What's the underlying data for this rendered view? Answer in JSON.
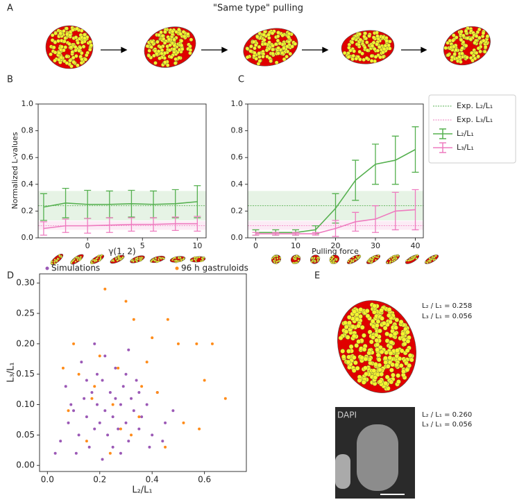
{
  "figure_title": "\"Same type\" pulling",
  "panel_labels": [
    "A",
    "B",
    "C",
    "D",
    "E"
  ],
  "chart_data": [
    {
      "type": "line",
      "y_label": "Normalized L-values",
      "x_label": "γ(1, 2)",
      "x": [
        -4,
        -2,
        0,
        2,
        4,
        6,
        8,
        10
      ],
      "xlim": [
        -4.5,
        10.8
      ],
      "xticks": [
        0,
        5,
        10
      ],
      "ylim": [
        0,
        1
      ],
      "yticks": [
        {
          "value": 0,
          "label": "0.0"
        },
        0.2,
        0.4,
        0.6,
        0.8,
        {
          "value": 1,
          "label": "1.0"
        }
      ],
      "reference_lines": [
        {
          "color": "#55b04f",
          "value": 0.24,
          "band": [
            0.13,
            0.35
          ]
        },
        {
          "color": "#ee7bbf",
          "value": 0.09,
          "band": [
            0.06,
            0.125
          ]
        }
      ],
      "series": [
        {
          "color": "#55b04f",
          "values": [
            0.23,
            0.26,
            0.25,
            0.25,
            0.255,
            0.25,
            0.255,
            0.27
          ],
          "errors": [
            0.1,
            0.11,
            0.105,
            0.1,
            0.1,
            0.1,
            0.105,
            0.12
          ]
        },
        {
          "color": "#ee7bbf",
          "values": [
            0.07,
            0.09,
            0.09,
            0.095,
            0.1,
            0.1,
            0.105,
            0.105
          ],
          "errors": [
            0.05,
            0.05,
            0.055,
            0.055,
            0.05,
            0.05,
            0.05,
            0.055
          ]
        }
      ]
    },
    {
      "type": "line",
      "x_label": "Pulling force",
      "x": [
        0,
        5,
        10,
        15,
        20,
        25,
        30,
        35,
        40
      ],
      "xlim": [
        -2,
        42
      ],
      "xticks": [
        0,
        10,
        20,
        30,
        40
      ],
      "ylim": [
        0,
        1
      ],
      "yticks": [
        {
          "value": 0,
          "label": "0.0"
        },
        0.2,
        0.4,
        0.6,
        0.8,
        {
          "value": 1,
          "label": "1.0"
        }
      ],
      "legend": "outside right",
      "reference_lines": [
        {
          "name": "Exp. L₂/L₁",
          "color": "#55b04f",
          "value": 0.24,
          "band": [
            0.13,
            0.35
          ]
        },
        {
          "name": "Exp. L₃/L₁",
          "color": "#ee7bbf",
          "value": 0.09,
          "band": [
            0.06,
            0.125
          ]
        }
      ],
      "series": [
        {
          "name": "L₂/L₁",
          "color": "#55b04f",
          "values": [
            0.04,
            0.04,
            0.04,
            0.06,
            0.22,
            0.43,
            0.55,
            0.58,
            0.66
          ],
          "errors": [
            0.02,
            0.02,
            0.02,
            0.03,
            0.11,
            0.15,
            0.15,
            0.18,
            0.17
          ]
        },
        {
          "name": "L₃/L₁",
          "color": "#ee7bbf",
          "values": [
            0.03,
            0.03,
            0.03,
            0.03,
            0.07,
            0.12,
            0.14,
            0.2,
            0.21
          ],
          "errors": [
            0.01,
            0.01,
            0.01,
            0.01,
            0.06,
            0.07,
            0.1,
            0.14,
            0.15
          ]
        }
      ]
    },
    {
      "type": "scatter",
      "x_label": "L₂/L₁",
      "y_label": "L₃/L₁",
      "legend": "top",
      "xlim": [
        -0.03,
        0.76
      ],
      "xticks": [
        {
          "value": 0,
          "label": "0.0"
        },
        0.2,
        0.4,
        0.6
      ],
      "ylim": [
        -0.01,
        0.315
      ],
      "yticks": [
        {
          "value": 0,
          "label": "0.00"
        },
        0.05,
        {
          "value": 0.1,
          "label": "0.10"
        },
        0.15,
        {
          "value": 0.2,
          "label": "0.20"
        },
        0.25,
        {
          "value": 0.3,
          "label": "0.30"
        }
      ],
      "series": [
        {
          "name": "Simulations",
          "color": "#9b59b6",
          "x": [
            0.05,
            0.08,
            0.1,
            0.12,
            0.14,
            0.15,
            0.16,
            0.17,
            0.18,
            0.19,
            0.2,
            0.21,
            0.22,
            0.23,
            0.24,
            0.25,
            0.26,
            0.27,
            0.28,
            0.29,
            0.3,
            0.31,
            0.32,
            0.33,
            0.34,
            0.35,
            0.36,
            0.38,
            0.4,
            0.42,
            0.45,
            0.48,
            0.03,
            0.07,
            0.11,
            0.13,
            0.19,
            0.22,
            0.25,
            0.28,
            0.31,
            0.35,
            0.39,
            0.18,
            0.21,
            0.26,
            0.3,
            0.15,
            0.09,
            0.44
          ],
          "y": [
            0.04,
            0.07,
            0.09,
            0.05,
            0.11,
            0.08,
            0.03,
            0.12,
            0.06,
            0.1,
            0.07,
            0.14,
            0.09,
            0.05,
            0.12,
            0.08,
            0.16,
            0.06,
            0.1,
            0.13,
            0.07,
            0.04,
            0.11,
            0.09,
            0.14,
            0.06,
            0.08,
            0.1,
            0.05,
            0.12,
            0.07,
            0.09,
            0.02,
            0.13,
            0.02,
            0.17,
            0.15,
            0.18,
            0.03,
            0.02,
            0.19,
            0.12,
            0.03,
            0.2,
            0.01,
            0.11,
            0.15,
            0.14,
            0.1,
            0.04
          ]
        },
        {
          "name": "96 h gastruloids",
          "color": "#ff8c1a",
          "x": [
            0.22,
            0.3,
            0.33,
            0.46,
            0.1,
            0.4,
            0.5,
            0.57,
            0.63,
            0.58,
            0.6,
            0.68,
            0.06,
            0.12,
            0.18,
            0.25,
            0.35,
            0.42,
            0.15,
            0.28,
            0.2,
            0.38,
            0.45,
            0.08,
            0.32,
            0.27,
            0.52,
            0.17,
            0.36,
            0.24
          ],
          "y": [
            0.29,
            0.27,
            0.24,
            0.24,
            0.2,
            0.21,
            0.2,
            0.2,
            0.2,
            0.06,
            0.14,
            0.11,
            0.16,
            0.15,
            0.13,
            0.1,
            0.08,
            0.12,
            0.04,
            0.06,
            0.18,
            0.17,
            0.03,
            0.09,
            0.05,
            0.16,
            0.07,
            0.11,
            0.13,
            0.02
          ]
        }
      ]
    }
  ],
  "panel_e": {
    "image_label": "DAPI",
    "annotations": [
      [
        "L₂ / L₁ = 0.258",
        "L₃ / L₁ = 0.056"
      ],
      [
        "L₂ / L₁ = 0.260",
        "L₃ / L₁ = 0.056"
      ]
    ]
  }
}
